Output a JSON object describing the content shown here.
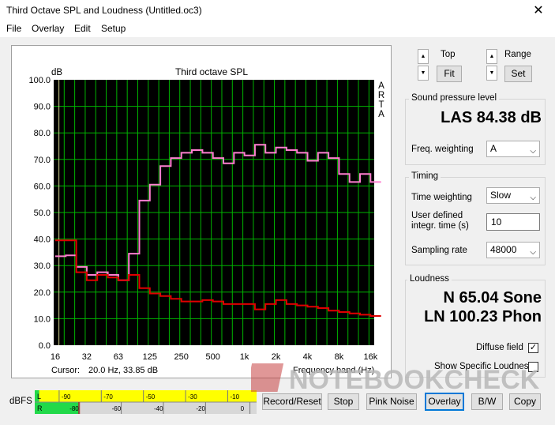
{
  "window": {
    "title": "Third Octave SPL and Loudness (Untitled.oc3)",
    "close": "✕"
  },
  "menu": [
    "File",
    "Overlay",
    "Edit",
    "Setup"
  ],
  "chart": {
    "unit_label": "dB",
    "title": "Third octave SPL",
    "side_label": [
      "A",
      "R",
      "T",
      "A"
    ],
    "x_label": "Frequency band (Hz)",
    "cursor_label": "Cursor:",
    "cursor_value": "20.0 Hz, 33.85 dB",
    "colors": {
      "background": "#000000",
      "grid": "#00b400",
      "series_pink": "#ff7fd0",
      "series_red": "#e00000"
    }
  },
  "chart_data": {
    "type": "line",
    "title": "Third octave SPL",
    "ylabel": "dB",
    "xlabel": "Frequency band (Hz)",
    "ylim": [
      0,
      100
    ],
    "yticks": [
      "100.0",
      "90.0",
      "80.0",
      "70.0",
      "60.0",
      "50.0",
      "40.0",
      "30.0",
      "20.0",
      "10.0",
      "0.0"
    ],
    "xtick_labels": [
      "16",
      "32",
      "63",
      "125",
      "250",
      "500",
      "1k",
      "2k",
      "4k",
      "8k",
      "16k"
    ],
    "step": "third-octave",
    "grid": true,
    "bands": [
      "16",
      "20",
      "25",
      "31.5",
      "40",
      "50",
      "63",
      "80",
      "100",
      "125",
      "160",
      "200",
      "250",
      "315",
      "400",
      "500",
      "630",
      "800",
      "1k",
      "1.25k",
      "1.6k",
      "2k",
      "2.5k",
      "3.15k",
      "4k",
      "5k",
      "6.3k",
      "8k",
      "10k",
      "12.5k",
      "16k",
      "20k"
    ],
    "series": [
      {
        "color": "#ff7fd0",
        "values": [
          33.5,
          33.85,
          29.5,
          26.5,
          27.5,
          26.5,
          24.5,
          34.5,
          54.5,
          60.5,
          67.5,
          70.5,
          72.5,
          73.5,
          72.5,
          70.5,
          68.5,
          72.5,
          71.5,
          75.5,
          72.5,
          74.5,
          73.5,
          72.5,
          69.5,
          72.5,
          70.5,
          64.5,
          61.5,
          64.5,
          61.5,
          61.5
        ]
      },
      {
        "color": "#e00000",
        "values": [
          39.5,
          39.5,
          27.5,
          24.5,
          26.5,
          25.5,
          24.5,
          26.5,
          21.5,
          19.5,
          18.5,
          17.5,
          16.5,
          16.5,
          17.0,
          16.5,
          15.5,
          15.5,
          15.5,
          13.5,
          15.5,
          17.0,
          15.5,
          15.0,
          14.5,
          14.0,
          13.0,
          12.5,
          12.0,
          11.5,
          11.0,
          11.0
        ]
      }
    ]
  },
  "scale": {
    "top_label": "Top",
    "fit_label": "Fit",
    "range_label": "Range",
    "set_label": "Set"
  },
  "spl": {
    "group_title": "Sound pressure level",
    "value": "LAS 84.38 dB",
    "freq_label": "Freq. weighting",
    "freq_value": "A"
  },
  "timing": {
    "group_title": "Timing",
    "time_weight_label": "Time weighting",
    "time_weight_value": "Slow",
    "user_label_1": "User defined",
    "user_label_2": "integr. time (s)",
    "user_value": "10",
    "sampling_label": "Sampling rate",
    "sampling_value": "48000"
  },
  "loudness": {
    "group_title": "Loudness",
    "n_value": "N 65.04 Sone",
    "ln_value": "LN 100.23 Phon",
    "diffuse_label": "Diffuse field",
    "diffuse_checked": true,
    "specific_label": "Show Specific Loudness",
    "specific_checked": false
  },
  "meter": {
    "dbfs_label": "dBFS",
    "ch_left": "L",
    "ch_right": "R",
    "ticks_top": [
      "-90",
      "-70",
      "-50",
      "-30",
      "-10"
    ],
    "ticks_bottom": [
      "-80",
      "-60",
      "-40",
      "-20",
      "0"
    ],
    "left_level_fraction": 0.02,
    "right_level_fraction": 0.2
  },
  "buttons": [
    "Record/Reset",
    "Stop",
    "Pink Noise",
    "Overlay",
    "B/W",
    "Copy"
  ],
  "watermark": "NOTEBOOKCHECK"
}
